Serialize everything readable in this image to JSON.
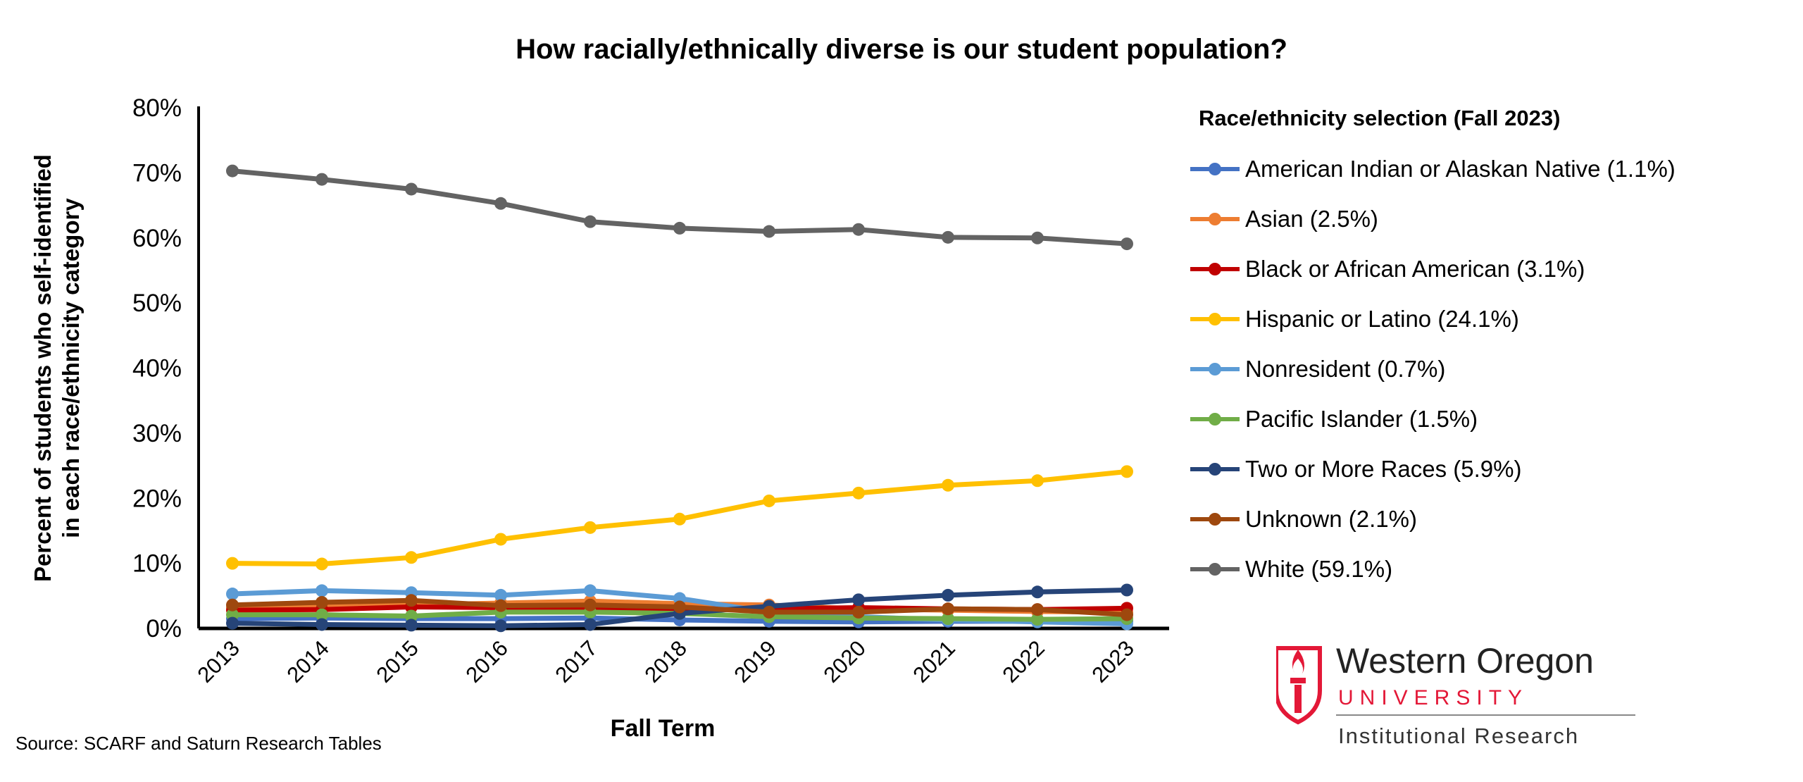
{
  "chart_data": {
    "type": "line",
    "title": "How racially/ethnically diverse is our student population?",
    "xlabel": "Fall Term",
    "ylabel": "Percent of students who self-identified in each race/ethnicity category",
    "ylabel_lines": [
      "Percent of students who self-identified",
      "in each race/ethnicity category"
    ],
    "ylim": [
      0,
      80
    ],
    "yticks": [
      "0%",
      "10%",
      "20%",
      "30%",
      "40%",
      "50%",
      "60%",
      "70%",
      "80%"
    ],
    "x": [
      "2013",
      "2014",
      "2015",
      "2016",
      "2017",
      "2018",
      "2019",
      "2020",
      "2021",
      "2022",
      "2023"
    ],
    "grid": false,
    "legend_title": "Race/ethnicity selection (Fall 2023)",
    "legend_position": "right",
    "series": [
      {
        "name": "American Indian or Alaskan Native (1.1%)",
        "color": "#4472C4",
        "values": [
          1.5,
          1.6,
          1.5,
          1.5,
          1.6,
          1.3,
          1.1,
          1.0,
          1.1,
          1.1,
          1.1
        ]
      },
      {
        "name": "Asian (2.5%)",
        "color": "#ED7D31",
        "values": [
          3.2,
          3.4,
          3.6,
          3.9,
          4.2,
          3.8,
          3.6,
          3.0,
          2.8,
          2.6,
          2.5
        ]
      },
      {
        "name": "Black or African American (3.1%)",
        "color": "#C00000",
        "values": [
          2.8,
          2.9,
          3.3,
          3.2,
          3.1,
          3.0,
          3.0,
          3.2,
          3.0,
          2.9,
          3.1
        ]
      },
      {
        "name": "Hispanic or Latino (24.1%)",
        "color": "#FFC000",
        "values": [
          10.0,
          9.9,
          10.9,
          13.7,
          15.5,
          16.8,
          19.6,
          20.8,
          22.0,
          22.7,
          24.1
        ]
      },
      {
        "name": "Nonresident (0.7%)",
        "color": "#5B9BD5",
        "values": [
          5.3,
          5.8,
          5.5,
          5.1,
          5.8,
          4.6,
          2.5,
          1.8,
          1.3,
          1.0,
          0.7
        ]
      },
      {
        "name": "Pacific Islander (1.5%)",
        "color": "#70AD47",
        "values": [
          2.1,
          2.1,
          1.9,
          2.5,
          2.5,
          2.3,
          1.8,
          1.6,
          1.5,
          1.4,
          1.5
        ]
      },
      {
        "name": "Two or More Races (5.9%)",
        "color": "#264478",
        "values": [
          0.8,
          0.6,
          0.5,
          0.4,
          0.6,
          2.3,
          3.4,
          4.4,
          5.1,
          5.6,
          5.9
        ]
      },
      {
        "name": "Unknown (2.1%)",
        "color": "#9E480E",
        "values": [
          3.6,
          4.0,
          4.3,
          3.5,
          3.6,
          3.3,
          2.5,
          2.5,
          3.0,
          2.9,
          2.1
        ]
      },
      {
        "name": "White (59.1%)",
        "color": "#636363",
        "values": [
          70.3,
          69.0,
          67.5,
          65.3,
          62.5,
          61.5,
          61.0,
          61.3,
          60.1,
          60.0,
          59.1
        ]
      }
    ]
  },
  "source": "Source: SCARF and Saturn Research Tables",
  "logo": {
    "line1": "Western Oregon",
    "line2": "UNIVERSITY",
    "line3": "Institutional Research",
    "color": "#E31837"
  }
}
